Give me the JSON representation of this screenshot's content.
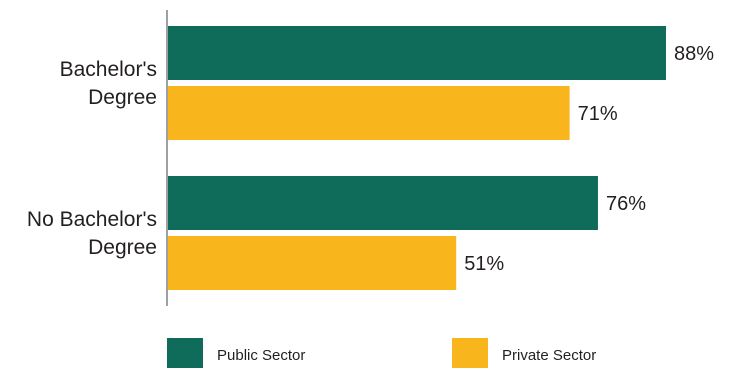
{
  "chart_data": {
    "type": "bar",
    "orientation": "horizontal",
    "categories": [
      [
        "Bachelor's",
        "Degree"
      ],
      [
        "No Bachelor's",
        "Degree"
      ]
    ],
    "series": [
      {
        "name": "Public Sector",
        "values": [
          88,
          76
        ],
        "labels": [
          "88%",
          "76%"
        ],
        "color": "#0f6b5a"
      },
      {
        "name": "Private Sector",
        "values": [
          71,
          51
        ],
        "labels": [
          "71%",
          "51%"
        ],
        "color": "#f8b51c"
      }
    ],
    "xlim": [
      0,
      100
    ],
    "grid": false,
    "legend_position": "bottom"
  }
}
